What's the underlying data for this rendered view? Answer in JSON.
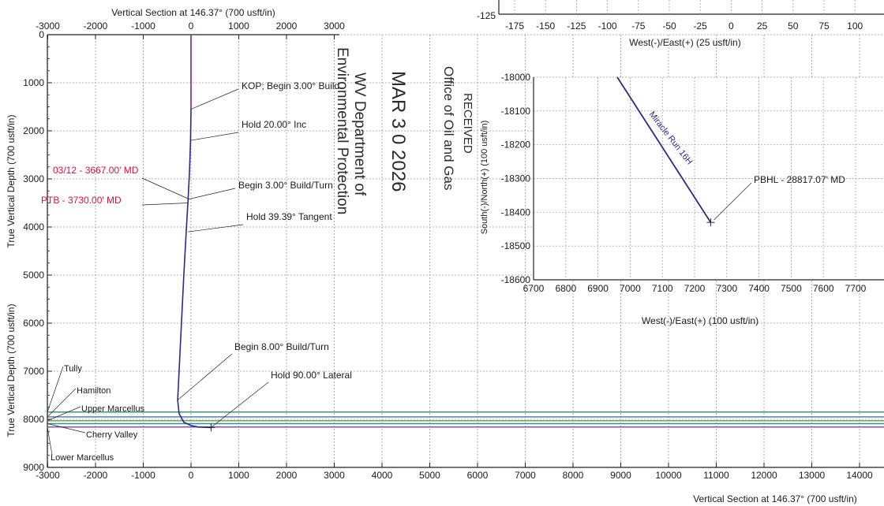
{
  "main_chart": {
    "type": "line",
    "top_xlabel": "Vertical Section at 146.37° (700 usft/in)",
    "bottom_xlabel": "Vertical Section at 146.37° (700 usft/in)",
    "ylabel_upper": "True Vertical Depth (700 usft/in)",
    "ylabel_lower": "True Vertical Depth (700 usft/in)",
    "top_xticks": [
      "-3000",
      "-2000",
      "-1000",
      "0",
      "1000",
      "2000",
      "3000"
    ],
    "bottom_xticks": [
      "-3000",
      "-2000",
      "-1000",
      "0",
      "1000",
      "2000",
      "3000",
      "4000",
      "5000",
      "6000",
      "7000",
      "8000",
      "9000",
      "10000",
      "11000",
      "12000",
      "13000",
      "14000"
    ],
    "yticks": [
      "0",
      "1000",
      "2000",
      "3000",
      "4000",
      "5000",
      "6000",
      "7000",
      "8000",
      "9000"
    ],
    "xlim": [
      -3000,
      14000
    ],
    "ylim": [
      0,
      9000
    ],
    "well_path": {
      "x": [
        0,
        0,
        -10,
        -30,
        -60,
        -100,
        -150,
        -200,
        -250,
        -280,
        -250,
        -150,
        0,
        150,
        420
      ],
      "y": [
        0,
        1550,
        2200,
        2800,
        3400,
        4100,
        5000,
        6000,
        7000,
        7600,
        7880,
        8060,
        8130,
        8160,
        8170
      ]
    },
    "formations": [
      {
        "name": "Tully",
        "tvd": 7850,
        "color": "#3a8a6a"
      },
      {
        "name": "Hamilton",
        "tvd": 7950,
        "color": "#4a6fb0"
      },
      {
        "name": "Upper Marcellus",
        "tvd": 8030,
        "color": "#6a9a3a"
      },
      {
        "name": "Cherry Valley",
        "tvd": 8090,
        "color": "#2f8fa6"
      },
      {
        "name": "Lower Marcellus",
        "tvd": 8160,
        "color": "#8a4fa8"
      }
    ],
    "annotations": [
      {
        "text": "KOP; Begin 3.00° Build",
        "color": "#1a1a1a"
      },
      {
        "text": "Hold 20.00° Inc",
        "color": "#1a1a1a"
      },
      {
        "text": "Begin 3.00° Build/Turn",
        "color": "#1a1a1a"
      },
      {
        "text": "Hold 39.39° Tangent",
        "color": "#1a1a1a"
      },
      {
        "text": "Begin 8.00° Build/Turn",
        "color": "#1a1a1a"
      },
      {
        "text": "Hold 90.00° Lateral",
        "color": "#1a1a1a"
      },
      {
        "text": "03/12 - 3667.00' MD",
        "color": "#e0103a"
      },
      {
        "text": "PTB - 3730.00' MD",
        "color": "#e0103a"
      }
    ]
  },
  "plan_view": {
    "type": "line",
    "xlabel": "West(-)/East(+) (100 usft/in)",
    "ylabel": "South(-)/North(+) (100 usft/in)",
    "xticks": [
      "6700",
      "6800",
      "6900",
      "7000",
      "7100",
      "7200",
      "7300",
      "7400",
      "7500",
      "7600",
      "7700"
    ],
    "yticks": [
      "-18000",
      "-18100",
      "-18200",
      "-18300",
      "-18400",
      "-18500",
      "-18600"
    ],
    "xlim": [
      6700,
      7700
    ],
    "ylim": [
      -18600,
      -18000
    ],
    "series_label": "Miracle Run 16H",
    "series": {
      "x": [
        6960,
        7250
      ],
      "y": [
        -18000,
        -18430
      ]
    },
    "target_label": "PBHL - 28817.07' MD",
    "target": {
      "x": 7250,
      "y": -18430
    }
  },
  "top_plan_axis": {
    "xlabel": "West(-)/East(+) (25 usft/in)",
    "ytick": "-125",
    "xticks": [
      "-175",
      "-150",
      "-125",
      "-100",
      "-75",
      "-50",
      "-25",
      "0",
      "25",
      "50",
      "75",
      "100"
    ]
  },
  "stamp": {
    "line1": "RECEIVED",
    "line2": "Office of Oil and Gas",
    "line3": "MAR 3 0 2026",
    "line4": "WV Department of",
    "line5": "Environmental Protection"
  },
  "colors": {
    "well_path": "#2a2a8a",
    "grid": "#9a9a9a",
    "axis": "#222222"
  }
}
